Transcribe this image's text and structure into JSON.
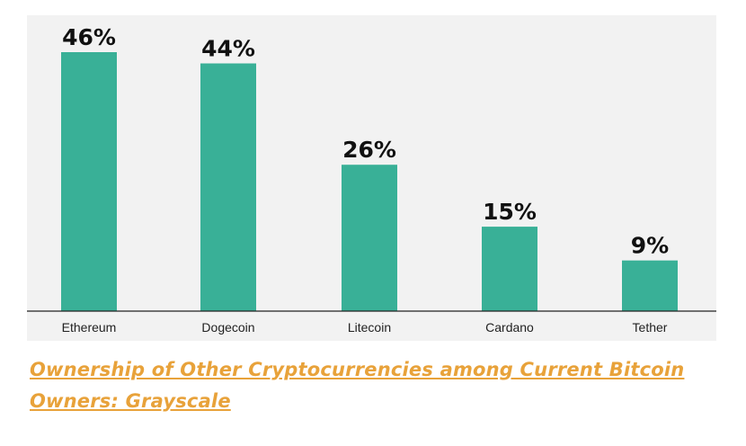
{
  "chart_data": {
    "type": "bar",
    "categories": [
      "Ethereum",
      "Dogecoin",
      "Litecoin",
      "Cardano",
      "Tether"
    ],
    "values": [
      46,
      44,
      26,
      15,
      9
    ],
    "value_labels": [
      "46%",
      "44%",
      "26%",
      "15%",
      "9%"
    ],
    "unit": "%",
    "ylim": [
      0,
      50
    ],
    "grid": false,
    "colors": {
      "bar": "#39b097",
      "background": "#f2f2f2"
    }
  },
  "caption": {
    "text": "Ownership of Other Cryptocurrencies among Current Bitcoin Owners: Grayscale",
    "color": "#e8a23a"
  }
}
